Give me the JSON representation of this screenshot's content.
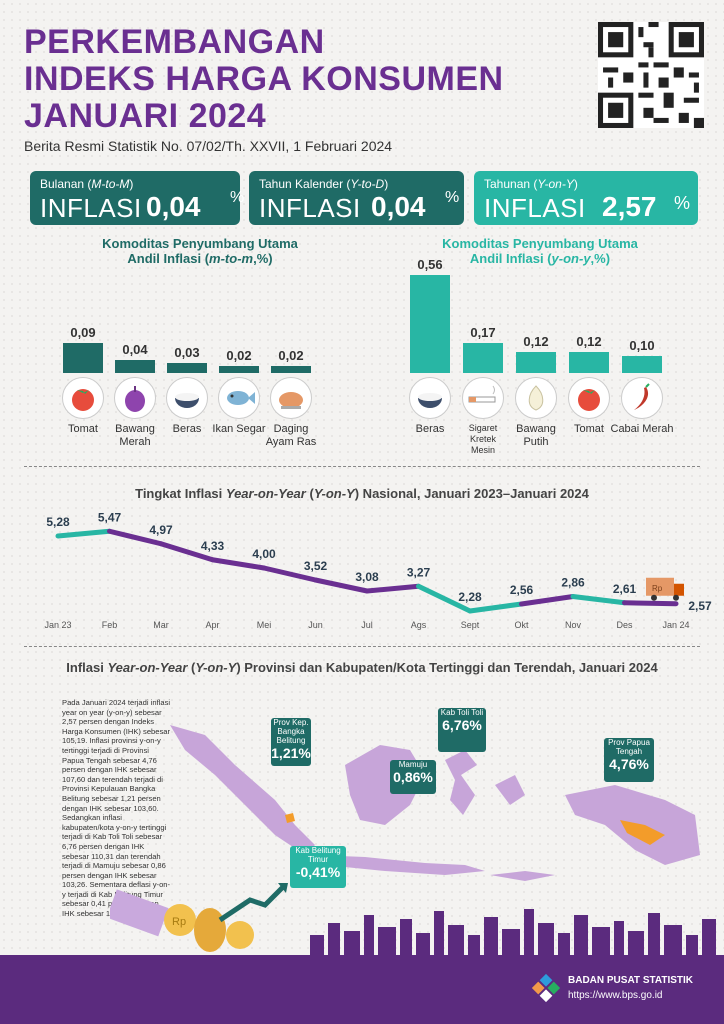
{
  "header": {
    "title_line1": "PERKEMBANGAN",
    "title_line2": "INDEKS HARGA KONSUMEN",
    "title_line3": "JANUARI 2024",
    "subtitle": "Berita Resmi Statistik No. 07/02/Th. XXVII, 1 Februari 2024"
  },
  "boxes": [
    {
      "label": "Bulanan",
      "label_italic": "M-to-M",
      "word": "INFLASI",
      "value": "0,04",
      "unit": "%"
    },
    {
      "label": "Tahun Kalender",
      "label_italic": "Y-to-D",
      "word": "INFLASI",
      "value": "0,04",
      "unit": "%"
    },
    {
      "label": "Tahunan",
      "label_italic": "Y-on-Y",
      "word": "INFLASI",
      "value": "2,57",
      "unit": "%"
    }
  ],
  "contrib_mtm": {
    "title_line1": "Komoditas Penyumbang Utama",
    "title_line2a": "Andil Inflasi",
    "title_line2b": "m-to-m",
    "title_line2c": ",%",
    "items": [
      {
        "label": "0,09",
        "value": 0.09,
        "name": "Tomat",
        "icon": "tomato-icon"
      },
      {
        "label": "0,04",
        "value": 0.04,
        "name": "Bawang Merah",
        "icon": "shallot-icon"
      },
      {
        "label": "0,03",
        "value": 0.03,
        "name": "Beras",
        "icon": "rice-bowl-icon"
      },
      {
        "label": "0,02",
        "value": 0.02,
        "name": "Ikan Segar",
        "icon": "fish-icon"
      },
      {
        "label": "0,02",
        "value": 0.02,
        "name": "Daging Ayam Ras",
        "icon": "chicken-icon"
      }
    ]
  },
  "contrib_yoy": {
    "title_line1": "Komoditas Penyumbang Utama",
    "title_line2a": "Andil Inflasi",
    "title_line2b": "y-on-y",
    "title_line2c": ",%",
    "items": [
      {
        "label": "0,56",
        "value": 0.56,
        "name": "Beras",
        "icon": "rice-bowl-icon"
      },
      {
        "label": "0,17",
        "value": 0.17,
        "name": "Sigaret Kretek Mesin",
        "icon": "cigarette-icon"
      },
      {
        "label": "0,12",
        "value": 0.12,
        "name": "Bawang Putih",
        "icon": "garlic-icon"
      },
      {
        "label": "0,12",
        "value": 0.12,
        "name": "Tomat",
        "icon": "tomato-icon"
      },
      {
        "label": "0,10",
        "value": 0.1,
        "name": "Cabai Merah",
        "icon": "chili-icon"
      }
    ]
  },
  "line_section": {
    "title_a": "Tingkat Inflasi ",
    "title_b": "Year-on-Year",
    "title_c": "Y-on-Y",
    "title_d": ") Nasional, Januari 2023–Januari 2024"
  },
  "chart_data": {
    "type": "line",
    "x": [
      "Jan 23",
      "Feb",
      "Mar",
      "Apr",
      "Mei",
      "Jun",
      "Jul",
      "Ags",
      "Sept",
      "Okt",
      "Nov",
      "Des",
      "Jan 24"
    ],
    "values": [
      5.28,
      5.47,
      4.97,
      4.33,
      4.0,
      3.52,
      3.08,
      3.27,
      2.28,
      2.56,
      2.86,
      2.61,
      2.57
    ],
    "value_labels": [
      "5,28",
      "5,47",
      "4,97",
      "4,33",
      "4,00",
      "3,52",
      "3,08",
      "3,27",
      "2,28",
      "2,56",
      "2,86",
      "2,61",
      "2,57"
    ],
    "colors": {
      "teal": "#28b6a4",
      "purple": "#6a2f91"
    }
  },
  "map_section": {
    "title_a": "Inflasi ",
    "title_b": "Year-on-Year",
    "title_c": "Y-on-Y",
    "title_d": ") Provinsi dan Kabupaten/Kota Tertinggi dan Terendah, Januari 2024",
    "description": "Pada Januari 2024 terjadi inflasi year on year (y-on-y) sebesar 2,57 persen dengan Indeks Harga Konsumen (IHK) sebesar 105,19. Inflasi provinsi y-on-y tertinggi terjadi di Provinsi Papua Tengah sebesar 4,76 persen dengan IHK sebesar 107,60 dan terendah terjadi di Provinsi Kepulauan Bangka Belitung sebesar 1,21 persen dengan IHK sebesar 103,60. Sedangkan inflasi kabupaten/kota y-on-y tertinggi terjadi di Kab Toli Toli sebesar 6,76 persen dengan IHK sebesar 110,31 dan terendah terjadi di Mamuju sebesar 0,86 persen dengan IHK sebesar 103,26. Sementara deflasi y-on-y terjadi di Kab Belitung Timur sebesar 0,41 persen dengan IHK sebesar 103,29.",
    "callouts": [
      {
        "label": "Prov Kep. Bangka Belitung",
        "value": "1,21%"
      },
      {
        "label": "Kab Toli Toli",
        "value": "6,76%"
      },
      {
        "label": "Mamuju",
        "value": "0,86%"
      },
      {
        "label": "Prov Papua Tengah",
        "value": "4,76%"
      },
      {
        "label": "Kab Belitung Timur",
        "value": "-0,41%"
      }
    ]
  },
  "footer": {
    "org": "BADAN PUSAT STATISTIK",
    "url": "https://www.bps.go.id"
  }
}
